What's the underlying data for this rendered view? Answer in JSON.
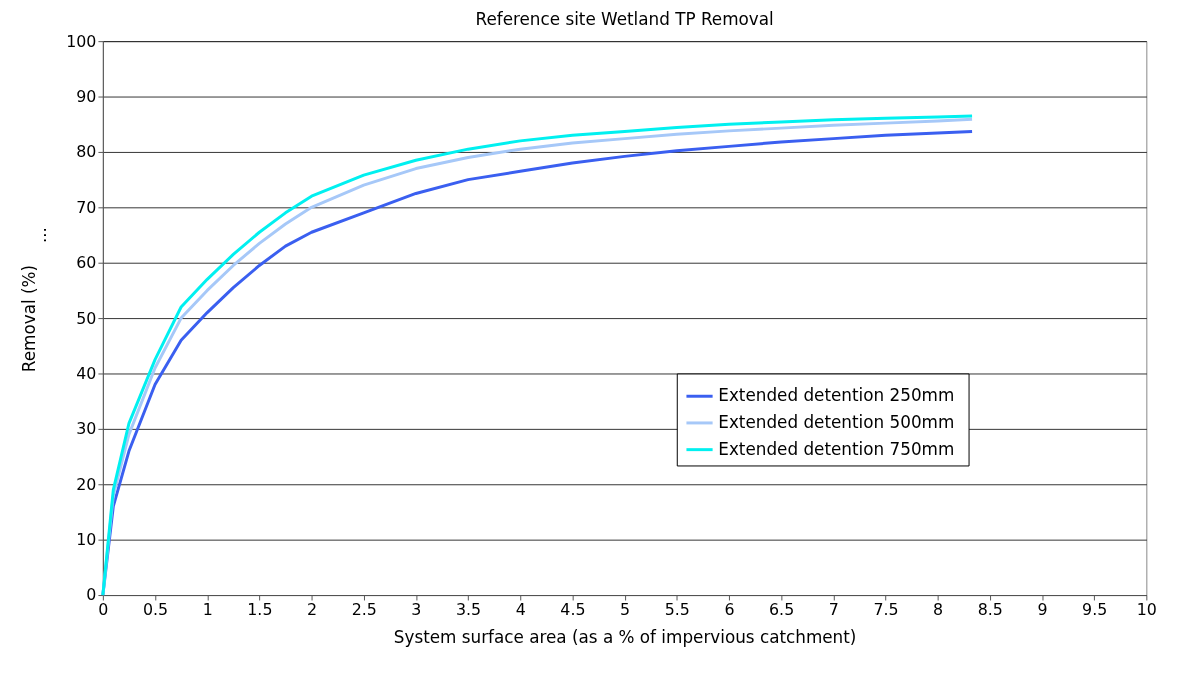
{
  "chart_data": {
    "type": "line",
    "title": "Reference site Wetland TP Removal",
    "xlabel": "System surface area (as a % of impervious catchment)",
    "ylabel": "Removal (%)",
    "annotations": [
      "…"
    ],
    "x": [
      0,
      0.1,
      0.25,
      0.5,
      0.75,
      1,
      1.25,
      1.5,
      1.75,
      2,
      2.5,
      3,
      3.5,
      4,
      4.5,
      5,
      5.5,
      6,
      6.5,
      7,
      7.5,
      8,
      8.33
    ],
    "series": [
      {
        "name": "Extended detention 250mm",
        "color": "#3a5ff0",
        "values": [
          0,
          16,
          26,
          38,
          46,
          51,
          55.5,
          59.5,
          63,
          65.5,
          69,
          72.5,
          75,
          76.5,
          78,
          79.2,
          80.2,
          81,
          81.8,
          82.4,
          83,
          83.4,
          83.7
        ]
      },
      {
        "name": "Extended detention  500mm",
        "color": "#a6c8f8",
        "values": [
          0,
          18,
          29,
          41,
          50,
          55,
          59.5,
          63.5,
          67,
          70,
          74,
          77,
          79,
          80.5,
          81.6,
          82.4,
          83.2,
          83.8,
          84.3,
          84.8,
          85.2,
          85.6,
          85.9
        ]
      },
      {
        "name": "Extended detention 750mm",
        "color": "#00f0f0",
        "values": [
          0,
          19,
          31,
          42.5,
          52,
          57,
          61.5,
          65.5,
          69,
          72,
          75.8,
          78.5,
          80.5,
          82,
          83,
          83.7,
          84.4,
          85,
          85.4,
          85.8,
          86.1,
          86.3,
          86.5
        ]
      }
    ],
    "xlim": [
      0,
      10
    ],
    "xticks": [
      0,
      0.5,
      1,
      1.5,
      2,
      2.5,
      3,
      3.5,
      4,
      4.5,
      5,
      5.5,
      6,
      6.5,
      7,
      7.5,
      8,
      8.5,
      9,
      9.5,
      10
    ],
    "ylim": [
      0,
      100
    ],
    "yticks": [
      0,
      10,
      20,
      30,
      40,
      50,
      60,
      70,
      80,
      90,
      100
    ],
    "grid": "y",
    "legend": "bottom right",
    "marker": "none",
    "line_style": "solid"
  }
}
